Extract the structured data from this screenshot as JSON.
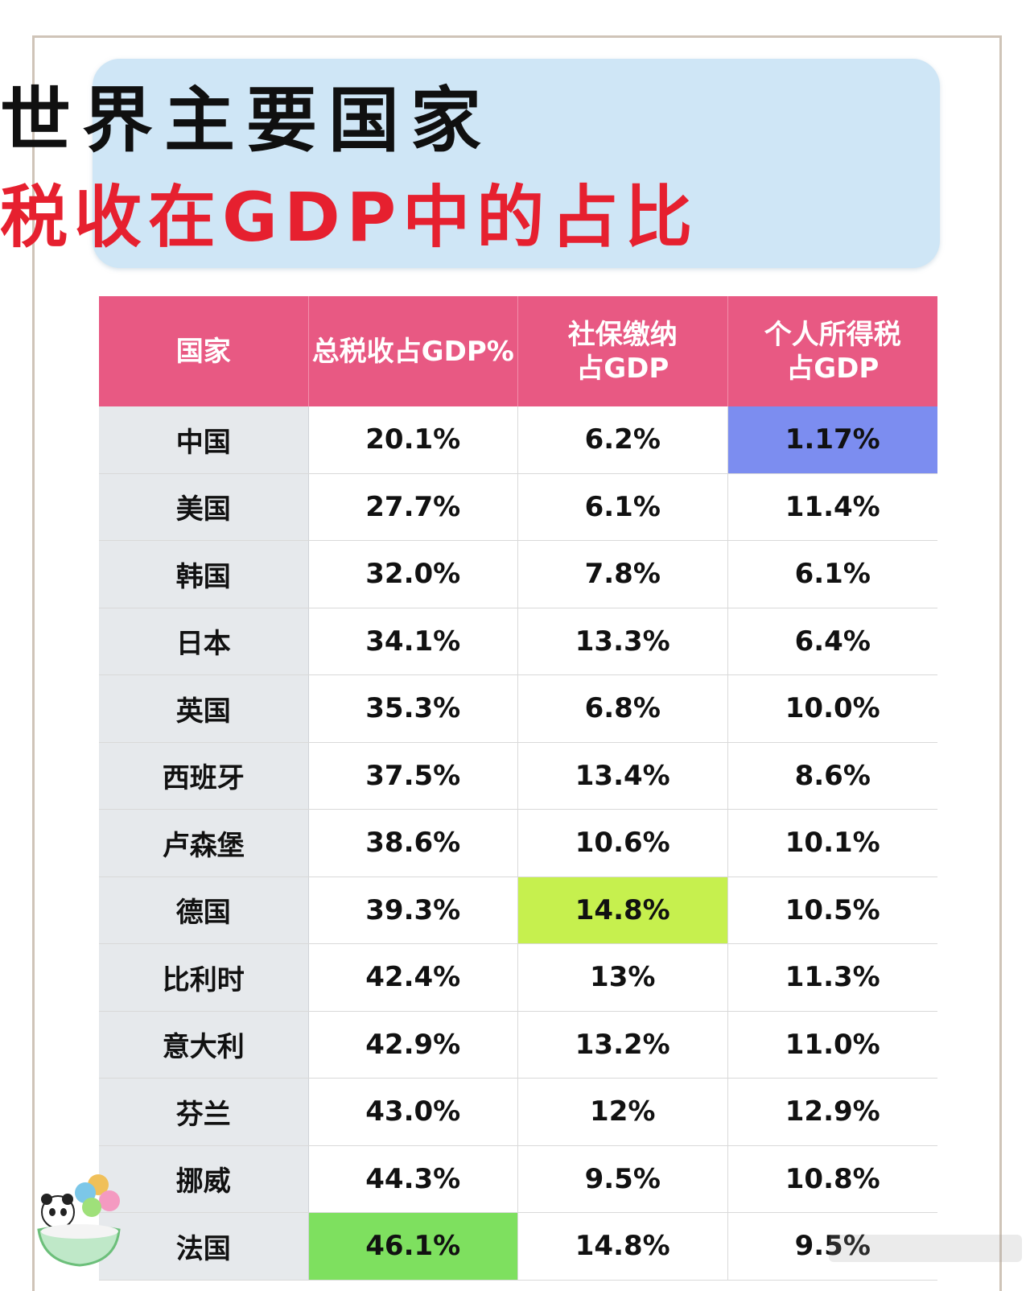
{
  "header": {
    "title_line1": "世界主要国家",
    "title_line2": "税收在GDP中的占比"
  },
  "colors": {
    "banner_bg": "#cfe6f6",
    "header_bg": "#e85983",
    "title_red": "#e6202f",
    "highlight_blue": "#7c8df0",
    "highlight_lime": "#c6f04e",
    "highlight_green": "#7ee05f"
  },
  "table": {
    "columns": [
      "国家",
      "总税收占GDP%",
      "社保缴纳\n占GDP",
      "个人所得税\n占GDP"
    ]
  },
  "chart_data": {
    "type": "table",
    "title": "世界主要国家 税收在GDP中的占比",
    "columns": [
      "国家",
      "总税收占GDP%",
      "社保缴纳占GDP",
      "个人所得税占GDP"
    ],
    "rows": [
      [
        "中国",
        "20.1%",
        "6.2%",
        "1.17%"
      ],
      [
        "美国",
        "27.7%",
        "6.1%",
        "11.4%"
      ],
      [
        "韩国",
        "32.0%",
        "7.8%",
        "6.1%"
      ],
      [
        "日本",
        "34.1%",
        "13.3%",
        "6.4%"
      ],
      [
        "英国",
        "35.3%",
        "6.8%",
        "10.0%"
      ],
      [
        "西班牙",
        "37.5%",
        "13.4%",
        "8.6%"
      ],
      [
        "卢森堡",
        "38.6%",
        "10.6%",
        "10.1%"
      ],
      [
        "德国",
        "39.3%",
        "14.8%",
        "10.5%"
      ],
      [
        "比利时",
        "42.4%",
        "13%",
        "11.3%"
      ],
      [
        "意大利",
        "42.9%",
        "13.2%",
        "11.0%"
      ],
      [
        "芬兰",
        "43.0%",
        "12%",
        "12.9%"
      ],
      [
        "挪威",
        "44.3%",
        "9.5%",
        "10.8%"
      ],
      [
        "法国",
        "46.1%",
        "14.8%",
        "9.5%"
      ]
    ],
    "highlights": [
      {
        "row": 0,
        "col": 3,
        "color": "#7c8df0"
      },
      {
        "row": 7,
        "col": 2,
        "color": "#c6f04e"
      },
      {
        "row": 12,
        "col": 1,
        "color": "#7ee05f"
      }
    ]
  }
}
